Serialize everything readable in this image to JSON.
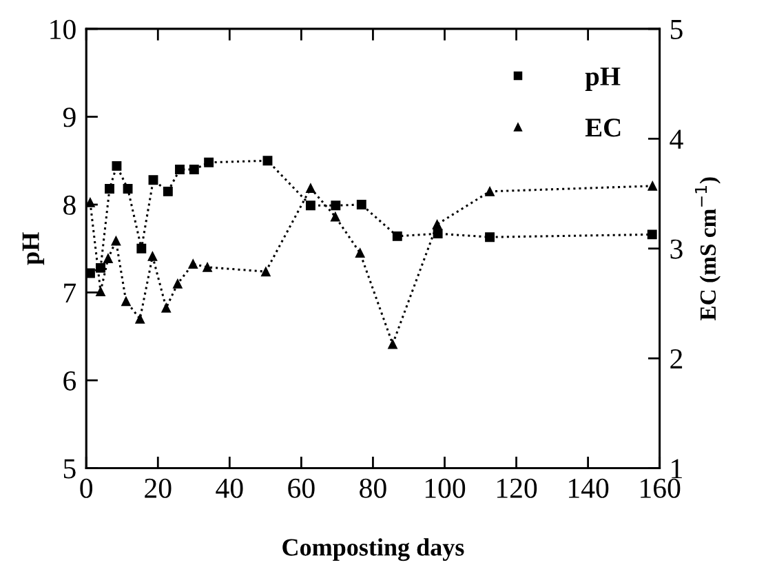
{
  "chart_data": {
    "type": "line",
    "xlabel": "Composting days",
    "ylabel": "pH",
    "y2label": "EC (mS cm$^{−1}$)",
    "xlim": [
      0,
      160
    ],
    "xticks": [
      0,
      20,
      40,
      60,
      80,
      100,
      120,
      140,
      160
    ],
    "ylim": [
      5,
      10
    ],
    "yticks": [
      5,
      6,
      7,
      8,
      9,
      10
    ],
    "y2lim": [
      1,
      5
    ],
    "y2ticks": [
      1,
      2,
      3,
      4,
      5
    ],
    "legend": "top right",
    "line_style": "dotted",
    "grid": false,
    "series": [
      {
        "name": "pH",
        "color": "#000000",
        "marker": "square",
        "x": [
          1.1,
          4.0,
          6.5,
          8.5,
          11.6,
          15.4,
          18.7,
          22.8,
          26.1,
          30.1,
          34.2,
          50.6,
          62.6,
          69.6,
          76.8,
          86.8,
          98.1,
          112.6,
          157.9
        ],
        "values": [
          7.22,
          7.28,
          8.18,
          8.44,
          8.18,
          7.5,
          8.28,
          8.15,
          8.4,
          8.4,
          8.48,
          8.5,
          7.99,
          7.99,
          8.0,
          7.64,
          7.67,
          7.63,
          7.66
        ]
      },
      {
        "name": "EC",
        "color": "#000000",
        "marker": "triangle",
        "axis": "y2",
        "x": [
          1.1,
          4.0,
          6.1,
          8.3,
          11.1,
          15.0,
          18.5,
          22.3,
          25.5,
          29.8,
          33.8,
          50.1,
          62.6,
          69.5,
          76.4,
          85.5,
          97.9,
          112.6,
          158.0
        ],
        "values": [
          3.42,
          2.61,
          2.91,
          3.07,
          2.52,
          2.36,
          2.93,
          2.46,
          2.68,
          2.86,
          2.83,
          2.79,
          3.55,
          3.29,
          2.96,
          2.13,
          3.22,
          3.52,
          3.57
        ]
      }
    ]
  }
}
